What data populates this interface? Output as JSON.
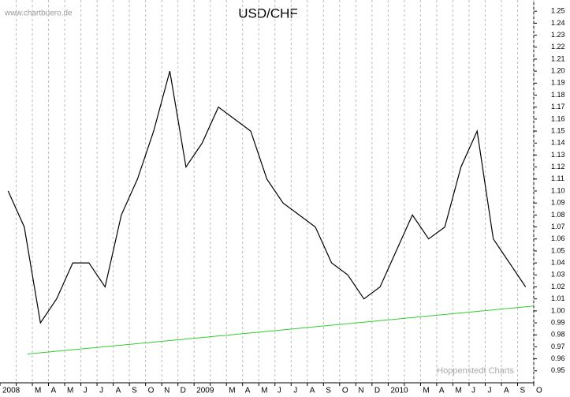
{
  "chart_data": {
    "type": "line",
    "title": "USD/CHF",
    "annotations": [
      "www.chartbuero.de",
      "Hoppenstedt Charts"
    ],
    "categories": [
      "2008",
      null,
      "M",
      "A",
      "M",
      "J",
      "J",
      "A",
      "S",
      "O",
      "N",
      "D",
      "2009",
      null,
      "M",
      "A",
      "M",
      "J",
      "J",
      "A",
      "S",
      "O",
      "N",
      "D",
      "2010",
      null,
      "M",
      "A",
      "M",
      "J",
      "J",
      "A",
      "S",
      "O"
    ],
    "series": [
      {
        "name": "USD/CHF",
        "color": "#000000",
        "values": [
          1.1,
          1.07,
          0.99,
          1.01,
          1.04,
          1.04,
          1.02,
          1.08,
          1.11,
          1.15,
          1.2,
          1.12,
          1.14,
          1.17,
          1.16,
          1.15,
          1.11,
          1.09,
          1.08,
          1.07,
          1.04,
          1.03,
          1.01,
          1.02,
          1.05,
          1.08,
          1.06,
          1.07,
          1.12,
          1.15,
          1.06,
          1.04,
          1.02,
          null
        ]
      }
    ],
    "trendline": {
      "color": "#33cc33",
      "values": [
        0.964,
        1.004
      ]
    },
    "ylim": [
      0.94,
      1.26
    ],
    "yticks": [
      0.95,
      0.96,
      0.97,
      0.98,
      0.99,
      {
        "value": 1,
        "label": "1.00"
      },
      1.01,
      1.02,
      1.03,
      1.04,
      1.05,
      1.06,
      1.07,
      1.08,
      1.09,
      {
        "value": 1.1,
        "label": "1.10"
      },
      1.11,
      1.12,
      1.13,
      1.14,
      1.15,
      1.16,
      1.17,
      1.18,
      1.19,
      {
        "value": 1.2,
        "label": "1.20"
      },
      1.21,
      1.22,
      1.23,
      1.24,
      1.25
    ],
    "grid": "x"
  }
}
